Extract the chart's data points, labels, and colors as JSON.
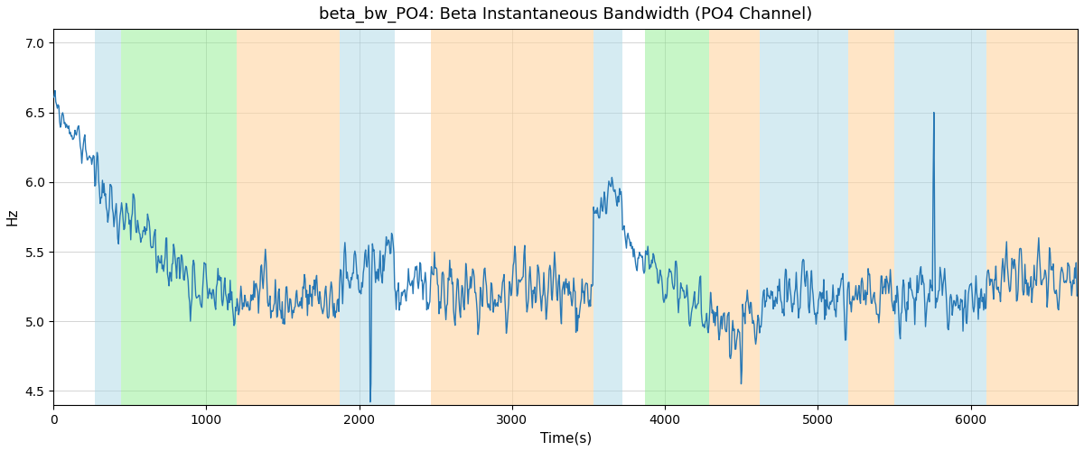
{
  "title": "beta_bw_PO4: Beta Instantaneous Bandwidth (PO4 Channel)",
  "xlabel": "Time(s)",
  "ylabel": "Hz",
  "ylim": [
    4.4,
    7.1
  ],
  "xlim": [
    0,
    6700
  ],
  "line_color": "#2878b5",
  "line_width": 1.0,
  "bg_color": "#ffffff",
  "grid_color": "#aaaaaa",
  "title_fontsize": 13,
  "label_fontsize": 11,
  "bands": [
    {
      "xmin": 270,
      "xmax": 440,
      "color": "#add8e6",
      "alpha": 0.5
    },
    {
      "xmin": 440,
      "xmax": 1200,
      "color": "#90ee90",
      "alpha": 0.5
    },
    {
      "xmin": 1200,
      "xmax": 1870,
      "color": "#ffd5a0",
      "alpha": 0.6
    },
    {
      "xmin": 1870,
      "xmax": 2230,
      "color": "#add8e6",
      "alpha": 0.5
    },
    {
      "xmin": 2230,
      "xmax": 2470,
      "color": "#ffffff",
      "alpha": 0.0
    },
    {
      "xmin": 2470,
      "xmax": 3530,
      "color": "#ffd5a0",
      "alpha": 0.6
    },
    {
      "xmin": 3530,
      "xmax": 3720,
      "color": "#add8e6",
      "alpha": 0.5
    },
    {
      "xmin": 3720,
      "xmax": 3870,
      "color": "#ffffff",
      "alpha": 0.0
    },
    {
      "xmin": 3870,
      "xmax": 4290,
      "color": "#90ee90",
      "alpha": 0.5
    },
    {
      "xmin": 4290,
      "xmax": 4620,
      "color": "#ffd5a0",
      "alpha": 0.6
    },
    {
      "xmin": 4620,
      "xmax": 5200,
      "color": "#add8e6",
      "alpha": 0.5
    },
    {
      "xmin": 5200,
      "xmax": 5500,
      "color": "#ffd5a0",
      "alpha": 0.6
    },
    {
      "xmin": 5500,
      "xmax": 6100,
      "color": "#add8e6",
      "alpha": 0.5
    },
    {
      "xmin": 6100,
      "xmax": 6700,
      "color": "#ffd5a0",
      "alpha": 0.6
    }
  ],
  "seed": 99,
  "n_points": 1340
}
